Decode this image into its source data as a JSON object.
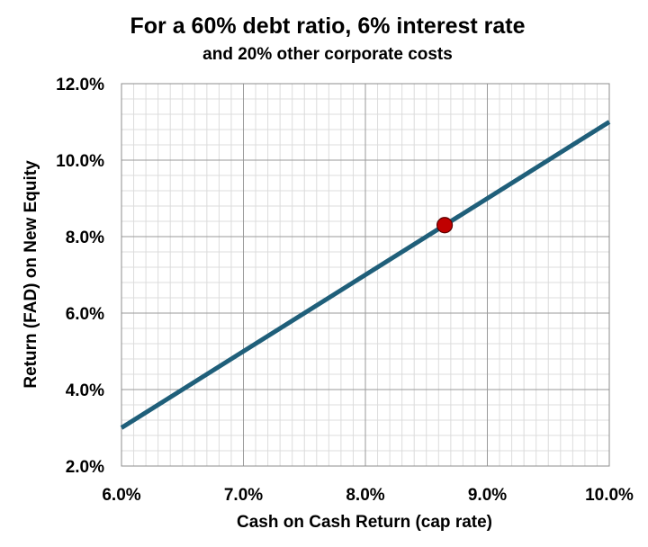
{
  "chart_data": {
    "type": "line",
    "title": "For a 60% debt ratio, 6% interest rate",
    "subtitle": "and 20% other corporate costs",
    "xlabel": "Cash on Cash Return (cap rate)",
    "ylabel": "Return (FAD) on New Equity",
    "xlim": [
      6.0,
      10.0
    ],
    "ylim": [
      2.0,
      12.0
    ],
    "x_ticks": [
      "6.0%",
      "7.0%",
      "8.0%",
      "9.0%",
      "10.0%"
    ],
    "y_ticks": [
      "2.0%",
      "4.0%",
      "6.0%",
      "8.0%",
      "10.0%",
      "12.0%"
    ],
    "grid": true,
    "series": [
      {
        "x": [
          6.0,
          10.0
        ],
        "y": [
          3.0,
          11.0
        ],
        "color": "#1f5f7a"
      }
    ],
    "highlight_point": {
      "x": 8.65,
      "y": 8.3,
      "color": "#c00000"
    }
  }
}
